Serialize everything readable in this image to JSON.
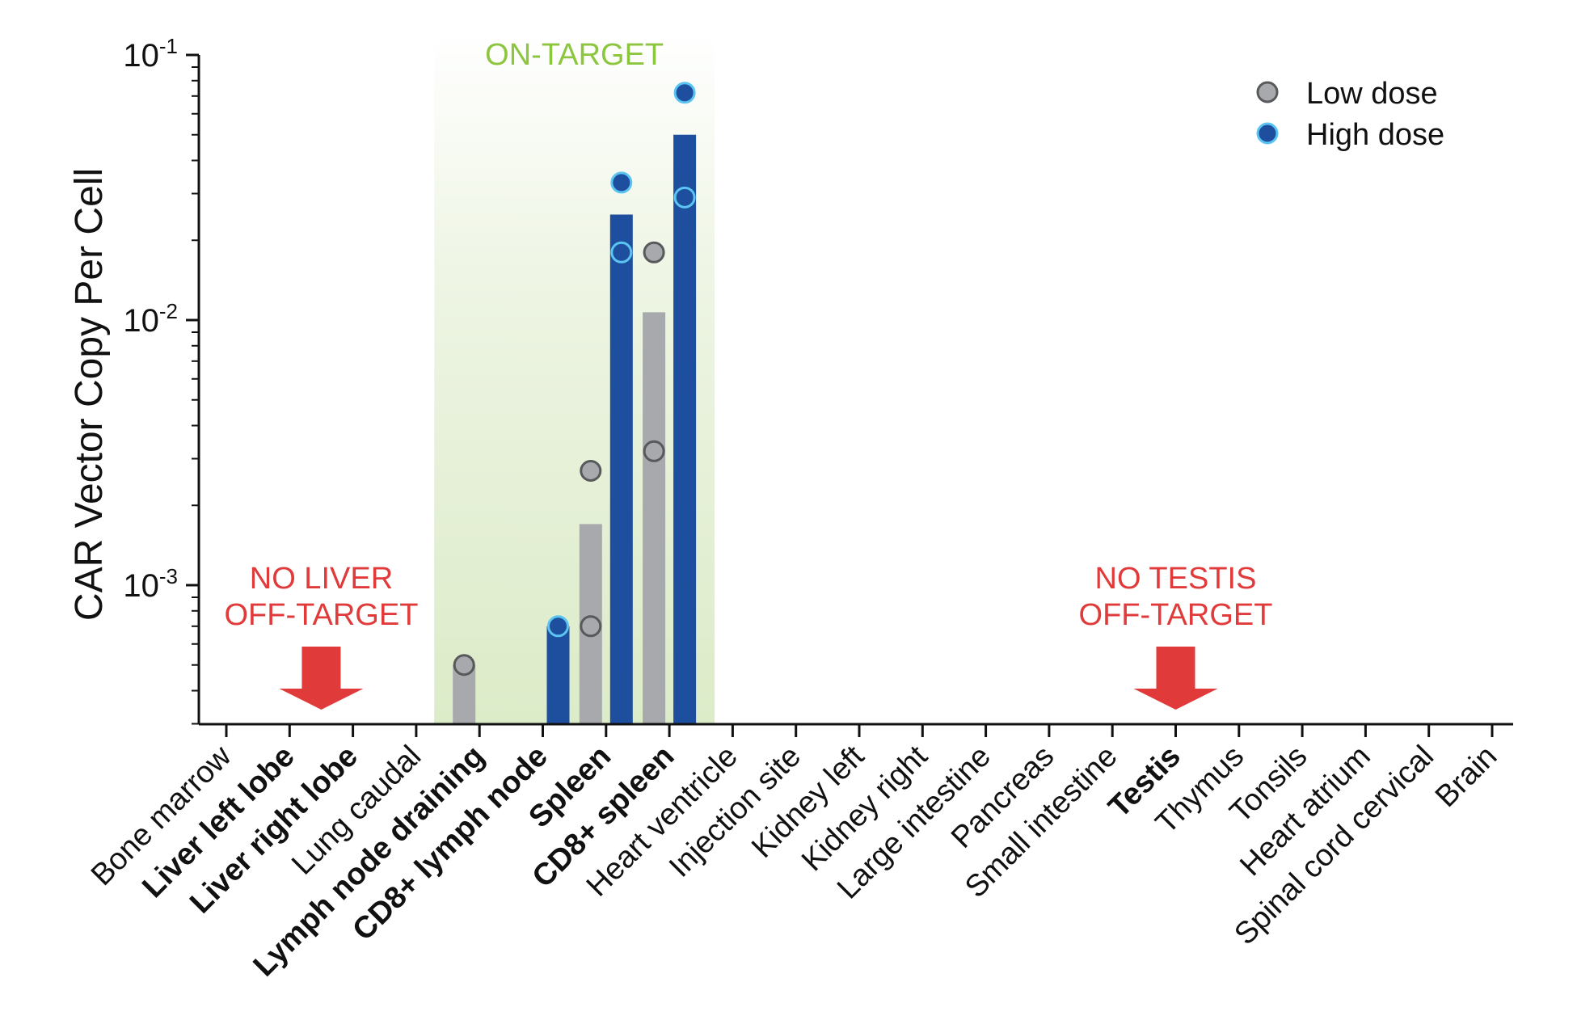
{
  "chart_data": {
    "type": "bar",
    "title": "",
    "xlabel": "",
    "ylabel": "CAR Vector Copy Per Cell",
    "yscale": "log",
    "ylim": [
      0.0003,
      0.1
    ],
    "yticks": [
      {
        "value": 0.001,
        "base": "10",
        "exp": "-3"
      },
      {
        "value": 0.01,
        "base": "10",
        "exp": "-2"
      },
      {
        "value": 0.1,
        "base": "10",
        "exp": "-1"
      }
    ],
    "categories": [
      {
        "label": "Bone marrow",
        "bold": false
      },
      {
        "label": "Liver left lobe",
        "bold": true
      },
      {
        "label": "Liver right lobe",
        "bold": true
      },
      {
        "label": "Lung caudal",
        "bold": false
      },
      {
        "label": "Lymph node draining",
        "bold": true
      },
      {
        "label": "CD8+ lymph node",
        "bold": true
      },
      {
        "label": "Spleen",
        "bold": true
      },
      {
        "label": "CD8+ spleen",
        "bold": true
      },
      {
        "label": "Heart ventricle",
        "bold": false
      },
      {
        "label": "Injection site",
        "bold": false
      },
      {
        "label": "Kidney left",
        "bold": false
      },
      {
        "label": "Kidney right",
        "bold": false
      },
      {
        "label": "Large intestine",
        "bold": false
      },
      {
        "label": "Pancreas",
        "bold": false
      },
      {
        "label": "Small intestine",
        "bold": false
      },
      {
        "label": "Testis",
        "bold": true
      },
      {
        "label": "Thymus",
        "bold": false
      },
      {
        "label": "Tonsils",
        "bold": false
      },
      {
        "label": "Heart atrium",
        "bold": false
      },
      {
        "label": "Spinal cord cervical",
        "bold": false
      },
      {
        "label": "Brain",
        "bold": false
      }
    ],
    "series": [
      {
        "name": "Low dose",
        "bar_color": "#a7a9ac",
        "point_fill": "#a7a9ac",
        "point_stroke": "#58595b",
        "values": [
          null,
          null,
          null,
          null,
          0.0005,
          null,
          0.0017,
          0.0107,
          null,
          null,
          null,
          null,
          null,
          null,
          null,
          null,
          null,
          null,
          null,
          null,
          null
        ],
        "points": [
          {
            "category": 4,
            "value": 0.0005,
            "filled": true
          },
          {
            "category": 6,
            "value": 0.0027,
            "filled": true
          },
          {
            "category": 6,
            "value": 0.0007,
            "filled": false
          },
          {
            "category": 7,
            "value": 0.018,
            "filled": true
          },
          {
            "category": 7,
            "value": 0.0032,
            "filled": false
          }
        ]
      },
      {
        "name": "High dose",
        "bar_color": "#1d4f9e",
        "point_fill": "#1d4f9e",
        "point_stroke": "#5bc4f1",
        "values": [
          null,
          null,
          null,
          null,
          null,
          0.0007,
          0.025,
          0.05,
          null,
          null,
          null,
          null,
          null,
          null,
          null,
          null,
          null,
          null,
          null,
          null,
          null
        ],
        "points": [
          {
            "category": 5,
            "value": 0.0007,
            "filled": true
          },
          {
            "category": 6,
            "value": 0.033,
            "filled": true
          },
          {
            "category": 6,
            "value": 0.018,
            "filled": false
          },
          {
            "category": 7,
            "value": 0.072,
            "filled": true
          },
          {
            "category": 7,
            "value": 0.029,
            "filled": false
          }
        ]
      }
    ],
    "shaded_region": {
      "label": "ON-TARGET",
      "from_category": 4,
      "to_category": 7,
      "color": "#e4efd3"
    },
    "annotations": [
      {
        "category": 1.5,
        "lines": [
          "NO LIVER",
          "OFF-TARGET"
        ],
        "color": "#e03a3a",
        "arrow": "down"
      },
      {
        "category": 15,
        "lines": [
          "NO TESTIS",
          "OFF-TARGET"
        ],
        "color": "#e03a3a",
        "arrow": "down"
      }
    ],
    "legend": {
      "position": "top-right"
    }
  }
}
